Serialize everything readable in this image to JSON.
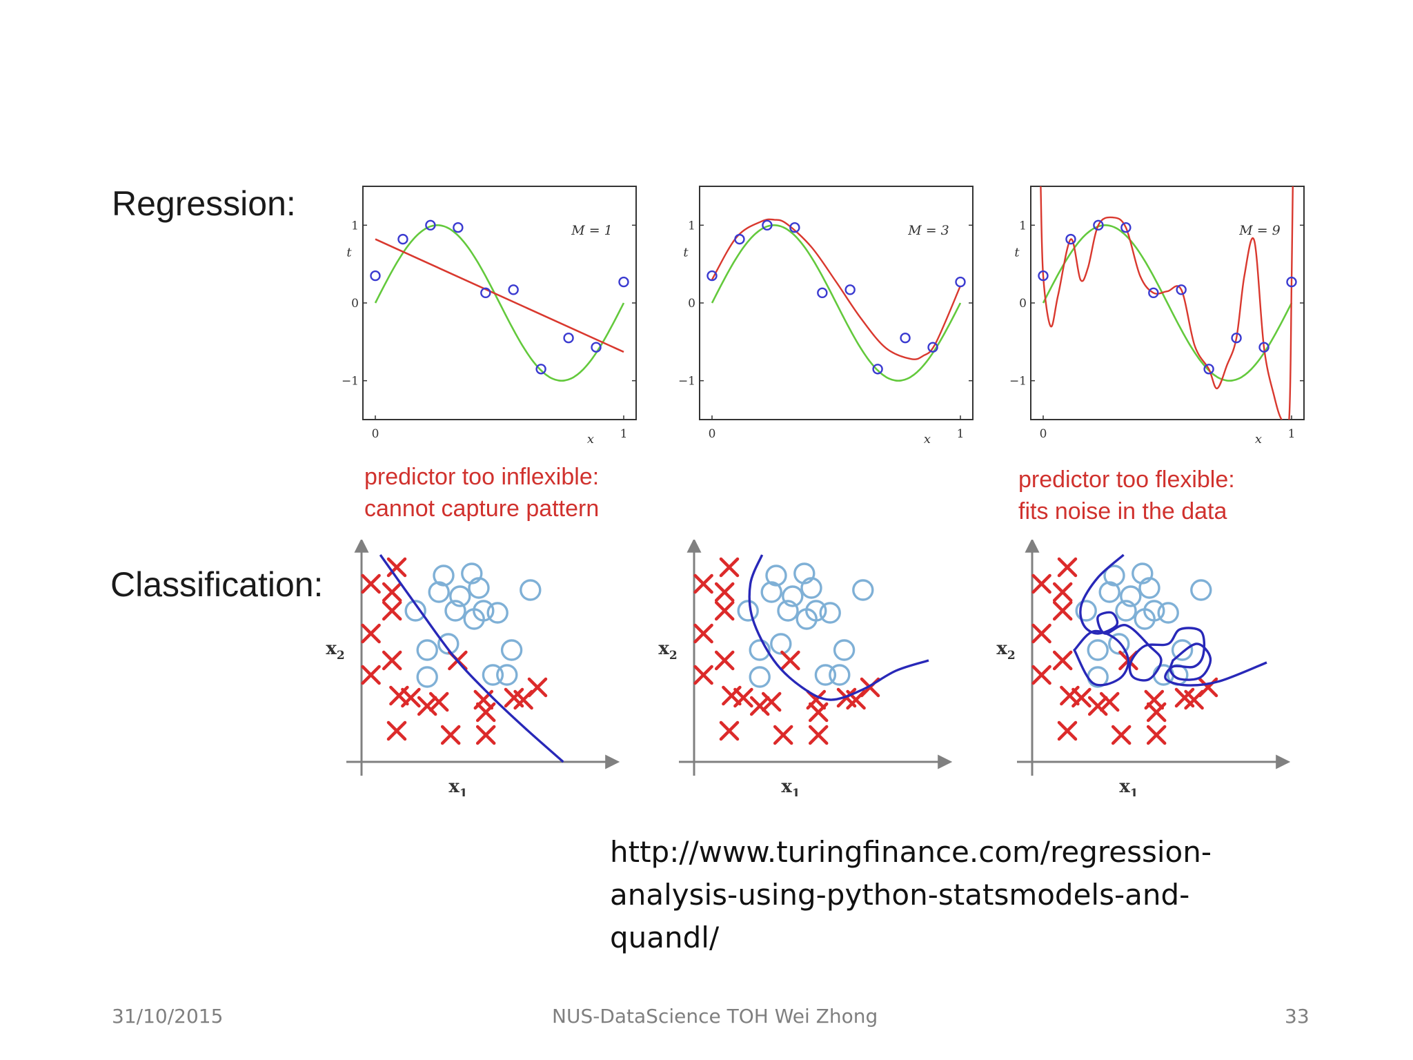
{
  "slide": {
    "regression_label": "Regression:",
    "classification_label": "Classification:",
    "caption_inflexible": [
      "predictor too inflexible:",
      "cannot capture pattern"
    ],
    "caption_flexible": [
      "predictor too flexible:",
      "fits noise in the data"
    ],
    "url_lines": [
      "http://www.turingfinance.com/regression-",
      "analysis-using-python-statsmodels-and-",
      "quandl/"
    ],
    "footer": {
      "date": "31/10/2015",
      "center": "NUS-DataScience TOH Wei Zhong",
      "page": "33"
    }
  },
  "colors": {
    "fit": "#d9382e",
    "truth": "#63c93c",
    "points": "#3a3ad0",
    "cross": "#dc2a2a",
    "circle": "#7fb0d6",
    "boundary": "#2828b8",
    "axis": "#808080"
  },
  "chart_data": [
    {
      "type": "line",
      "panel": "regression-m1",
      "annotation": "M = 1",
      "xlabel": "x",
      "ylabel": "t",
      "xlim": [
        0,
        1
      ],
      "ylim": [
        -1.5,
        1.5
      ],
      "xticks": [
        "0",
        "1"
      ],
      "yticks": [
        "−1",
        "0",
        "1"
      ],
      "points": {
        "x": [
          0.0,
          0.111,
          0.222,
          0.333,
          0.444,
          0.556,
          0.667,
          0.778,
          0.889,
          1.0
        ],
        "t": [
          0.35,
          0.82,
          1.0,
          0.97,
          0.13,
          0.17,
          -0.85,
          -0.45,
          -0.57,
          0.27
        ]
      },
      "truth_curve": "sin(2πx)",
      "fit": {
        "kind": "linear",
        "coef": [
          0.82,
          -1.45
        ]
      }
    },
    {
      "type": "line",
      "panel": "regression-m3",
      "annotation": "M = 3",
      "xlabel": "x",
      "ylabel": "t",
      "xlim": [
        0,
        1
      ],
      "ylim": [
        -1.5,
        1.5
      ],
      "xticks": [
        "0",
        "1"
      ],
      "yticks": [
        "−1",
        "0",
        "1"
      ],
      "points": {
        "x": [
          0.0,
          0.111,
          0.222,
          0.333,
          0.444,
          0.556,
          0.667,
          0.778,
          0.889,
          1.0
        ],
        "t": [
          0.35,
          0.82,
          1.0,
          0.97,
          0.13,
          0.17,
          -0.85,
          -0.45,
          -0.57,
          0.27
        ]
      },
      "truth_curve": "sin(2πx)",
      "fit": {
        "kind": "cubic",
        "x": [
          0,
          0.1,
          0.2,
          0.25,
          0.3,
          0.4,
          0.5,
          0.6,
          0.7,
          0.8,
          0.85,
          0.9,
          1.0
        ],
        "t": [
          0.3,
          0.85,
          1.05,
          1.07,
          1.02,
          0.72,
          0.27,
          -0.2,
          -0.58,
          -0.72,
          -0.68,
          -0.52,
          0.22
        ]
      }
    },
    {
      "type": "line",
      "panel": "regression-m9",
      "annotation": "M = 9",
      "xlabel": "x",
      "ylabel": "t",
      "xlim": [
        0,
        1
      ],
      "ylim": [
        -1.5,
        1.5
      ],
      "xticks": [
        "0",
        "1"
      ],
      "yticks": [
        "−1",
        "0",
        "1"
      ],
      "points": {
        "x": [
          0.0,
          0.111,
          0.222,
          0.333,
          0.444,
          0.556,
          0.667,
          0.778,
          0.889,
          1.0
        ],
        "t": [
          0.35,
          0.82,
          1.0,
          0.97,
          0.13,
          0.17,
          -0.85,
          -0.45,
          -0.57,
          0.27
        ]
      },
      "truth_curve": "sin(2πx)",
      "fit": {
        "kind": "interpolating",
        "x": [
          -0.01,
          0.0,
          0.03,
          0.06,
          0.111,
          0.15,
          0.18,
          0.222,
          0.28,
          0.333,
          0.39,
          0.444,
          0.5,
          0.556,
          0.61,
          0.667,
          0.7,
          0.74,
          0.778,
          0.81,
          0.85,
          0.889,
          0.93,
          0.96,
          0.99,
          1.0,
          1.005
        ],
        "t": [
          1.5,
          0.35,
          -0.3,
          0.1,
          0.82,
          0.3,
          0.45,
          1.0,
          1.1,
          0.97,
          0.35,
          0.13,
          0.15,
          0.17,
          -0.55,
          -0.85,
          -1.1,
          -0.8,
          -0.45,
          0.35,
          0.8,
          -0.57,
          -1.2,
          -1.5,
          -1.5,
          0.27,
          1.5
        ]
      }
    },
    {
      "type": "scatter",
      "panel": "classification-underfit",
      "xlabel": "x1",
      "ylabel": "x2",
      "xlim": [
        0,
        10
      ],
      "ylim": [
        0,
        10
      ],
      "class_cross": [
        [
          0.4,
          8.6
        ],
        [
          1.5,
          9.4
        ],
        [
          1.3,
          8.2
        ],
        [
          0.4,
          6.2
        ],
        [
          0.4,
          4.2
        ],
        [
          1.3,
          4.9
        ],
        [
          1.3,
          7.3
        ],
        [
          1.6,
          3.2
        ],
        [
          2.1,
          3.1
        ],
        [
          2.8,
          2.7
        ],
        [
          4.1,
          4.9
        ],
        [
          5.2,
          3.0
        ],
        [
          3.3,
          2.9
        ],
        [
          5.3,
          2.4
        ],
        [
          1.5,
          1.5
        ],
        [
          3.8,
          1.3
        ],
        [
          6.5,
          3.1
        ],
        [
          6.9,
          3.0
        ],
        [
          5.3,
          1.3
        ],
        [
          7.5,
          3.6
        ]
      ],
      "class_circle": [
        [
          3.5,
          9.0
        ],
        [
          4.2,
          8.0
        ],
        [
          4.7,
          9.1
        ],
        [
          5.0,
          8.4
        ],
        [
          3.3,
          8.2
        ],
        [
          2.3,
          7.3
        ],
        [
          4.0,
          7.3
        ],
        [
          5.2,
          7.3
        ],
        [
          4.8,
          6.9
        ],
        [
          5.8,
          7.2
        ],
        [
          7.2,
          8.3
        ],
        [
          3.7,
          5.7
        ],
        [
          2.8,
          5.4
        ],
        [
          6.4,
          5.4
        ],
        [
          2.8,
          4.1
        ],
        [
          5.6,
          4.2
        ],
        [
          6.2,
          4.2
        ]
      ],
      "boundary": {
        "x": [
          0.8,
          2.5,
          4.0,
          5.5,
          7.0,
          8.6
        ],
        "y": [
          10.0,
          7.3,
          5.0,
          3.2,
          1.6,
          0.0
        ]
      }
    },
    {
      "type": "scatter",
      "panel": "classification-good-fit",
      "xlabel": "x1",
      "ylabel": "x2",
      "xlim": [
        0,
        10
      ],
      "ylim": [
        0,
        10
      ],
      "class_cross": [
        [
          0.4,
          8.6
        ],
        [
          1.5,
          9.4
        ],
        [
          1.3,
          8.2
        ],
        [
          0.4,
          6.2
        ],
        [
          0.4,
          4.2
        ],
        [
          1.3,
          4.9
        ],
        [
          1.3,
          7.3
        ],
        [
          1.6,
          3.2
        ],
        [
          2.1,
          3.1
        ],
        [
          2.8,
          2.7
        ],
        [
          4.1,
          4.9
        ],
        [
          5.2,
          3.0
        ],
        [
          3.3,
          2.9
        ],
        [
          5.3,
          2.4
        ],
        [
          1.5,
          1.5
        ],
        [
          3.8,
          1.3
        ],
        [
          6.5,
          3.1
        ],
        [
          6.9,
          3.0
        ],
        [
          5.3,
          1.3
        ],
        [
          7.5,
          3.6
        ]
      ],
      "class_circle": [
        [
          3.5,
          9.0
        ],
        [
          4.2,
          8.0
        ],
        [
          4.7,
          9.1
        ],
        [
          5.0,
          8.4
        ],
        [
          3.3,
          8.2
        ],
        [
          2.3,
          7.3
        ],
        [
          4.0,
          7.3
        ],
        [
          5.2,
          7.3
        ],
        [
          4.8,
          6.9
        ],
        [
          5.8,
          7.2
        ],
        [
          7.2,
          8.3
        ],
        [
          3.7,
          5.7
        ],
        [
          2.8,
          5.4
        ],
        [
          6.4,
          5.4
        ],
        [
          2.8,
          4.1
        ],
        [
          5.6,
          4.2
        ],
        [
          6.2,
          4.2
        ]
      ],
      "boundary": {
        "x": [
          2.9,
          2.4,
          2.5,
          3.4,
          4.6,
          5.8,
          7.2,
          8.6,
          10.0
        ],
        "y": [
          10.0,
          8.6,
          6.9,
          4.9,
          3.6,
          3.0,
          3.5,
          4.4,
          4.9
        ]
      }
    },
    {
      "type": "scatter",
      "panel": "classification-overfit",
      "xlabel": "x1",
      "ylabel": "x2",
      "xlim": [
        0,
        10
      ],
      "ylim": [
        0,
        10
      ],
      "class_cross": [
        [
          0.4,
          8.6
        ],
        [
          1.5,
          9.4
        ],
        [
          1.3,
          8.2
        ],
        [
          0.4,
          6.2
        ],
        [
          0.4,
          4.2
        ],
        [
          1.3,
          4.9
        ],
        [
          1.3,
          7.3
        ],
        [
          1.6,
          3.2
        ],
        [
          2.1,
          3.1
        ],
        [
          2.8,
          2.7
        ],
        [
          4.1,
          4.9
        ],
        [
          5.2,
          3.0
        ],
        [
          3.3,
          2.9
        ],
        [
          5.3,
          2.4
        ],
        [
          1.5,
          1.5
        ],
        [
          3.8,
          1.3
        ],
        [
          6.5,
          3.1
        ],
        [
          6.9,
          3.0
        ],
        [
          5.3,
          1.3
        ],
        [
          7.5,
          3.6
        ]
      ],
      "class_circle": [
        [
          3.5,
          9.0
        ],
        [
          4.2,
          8.0
        ],
        [
          4.7,
          9.1
        ],
        [
          5.0,
          8.4
        ],
        [
          3.3,
          8.2
        ],
        [
          2.3,
          7.3
        ],
        [
          4.0,
          7.3
        ],
        [
          5.2,
          7.3
        ],
        [
          4.8,
          6.9
        ],
        [
          5.8,
          7.2
        ],
        [
          7.2,
          8.3
        ],
        [
          3.7,
          5.7
        ],
        [
          2.8,
          5.4
        ],
        [
          6.4,
          5.4
        ],
        [
          2.8,
          4.1
        ],
        [
          5.6,
          4.2
        ],
        [
          6.2,
          4.2
        ]
      ],
      "boundary": {
        "main": {
          "x": [
            3.9,
            2.8,
            2.1,
            2.2,
            2.8,
            3.6,
            3.4,
            2.8,
            3.1,
            4.0,
            5.0,
            5.5,
            5.0,
            4.3,
            4.2,
            4.8,
            5.8,
            6.3,
            7.2,
            7.3,
            6.9,
            6.0,
            5.7,
            6.6,
            8.0,
            10.0
          ],
          "y": [
            10.0,
            8.9,
            7.6,
            6.6,
            6.2,
            6.6,
            7.2,
            7.0,
            6.2,
            6.6,
            5.6,
            4.9,
            4.0,
            4.1,
            4.8,
            5.6,
            5.7,
            6.4,
            6.3,
            5.2,
            4.6,
            4.6,
            4.0,
            3.7,
            3.9,
            4.8
          ]
        },
        "islands": [
          {
            "x": [
              1.8,
              2.6,
              3.6,
              4.1,
              3.7,
              2.6,
              1.8
            ],
            "y": [
              5.4,
              6.3,
              5.9,
              4.9,
              4.0,
              3.8,
              5.4
            ]
          },
          {
            "x": [
              6.0,
              7.0,
              7.6,
              7.2,
              6.3,
              5.9,
              6.0
            ],
            "y": [
              4.9,
              5.7,
              5.0,
              4.1,
              4.0,
              4.4,
              4.9
            ]
          }
        ]
      }
    }
  ]
}
